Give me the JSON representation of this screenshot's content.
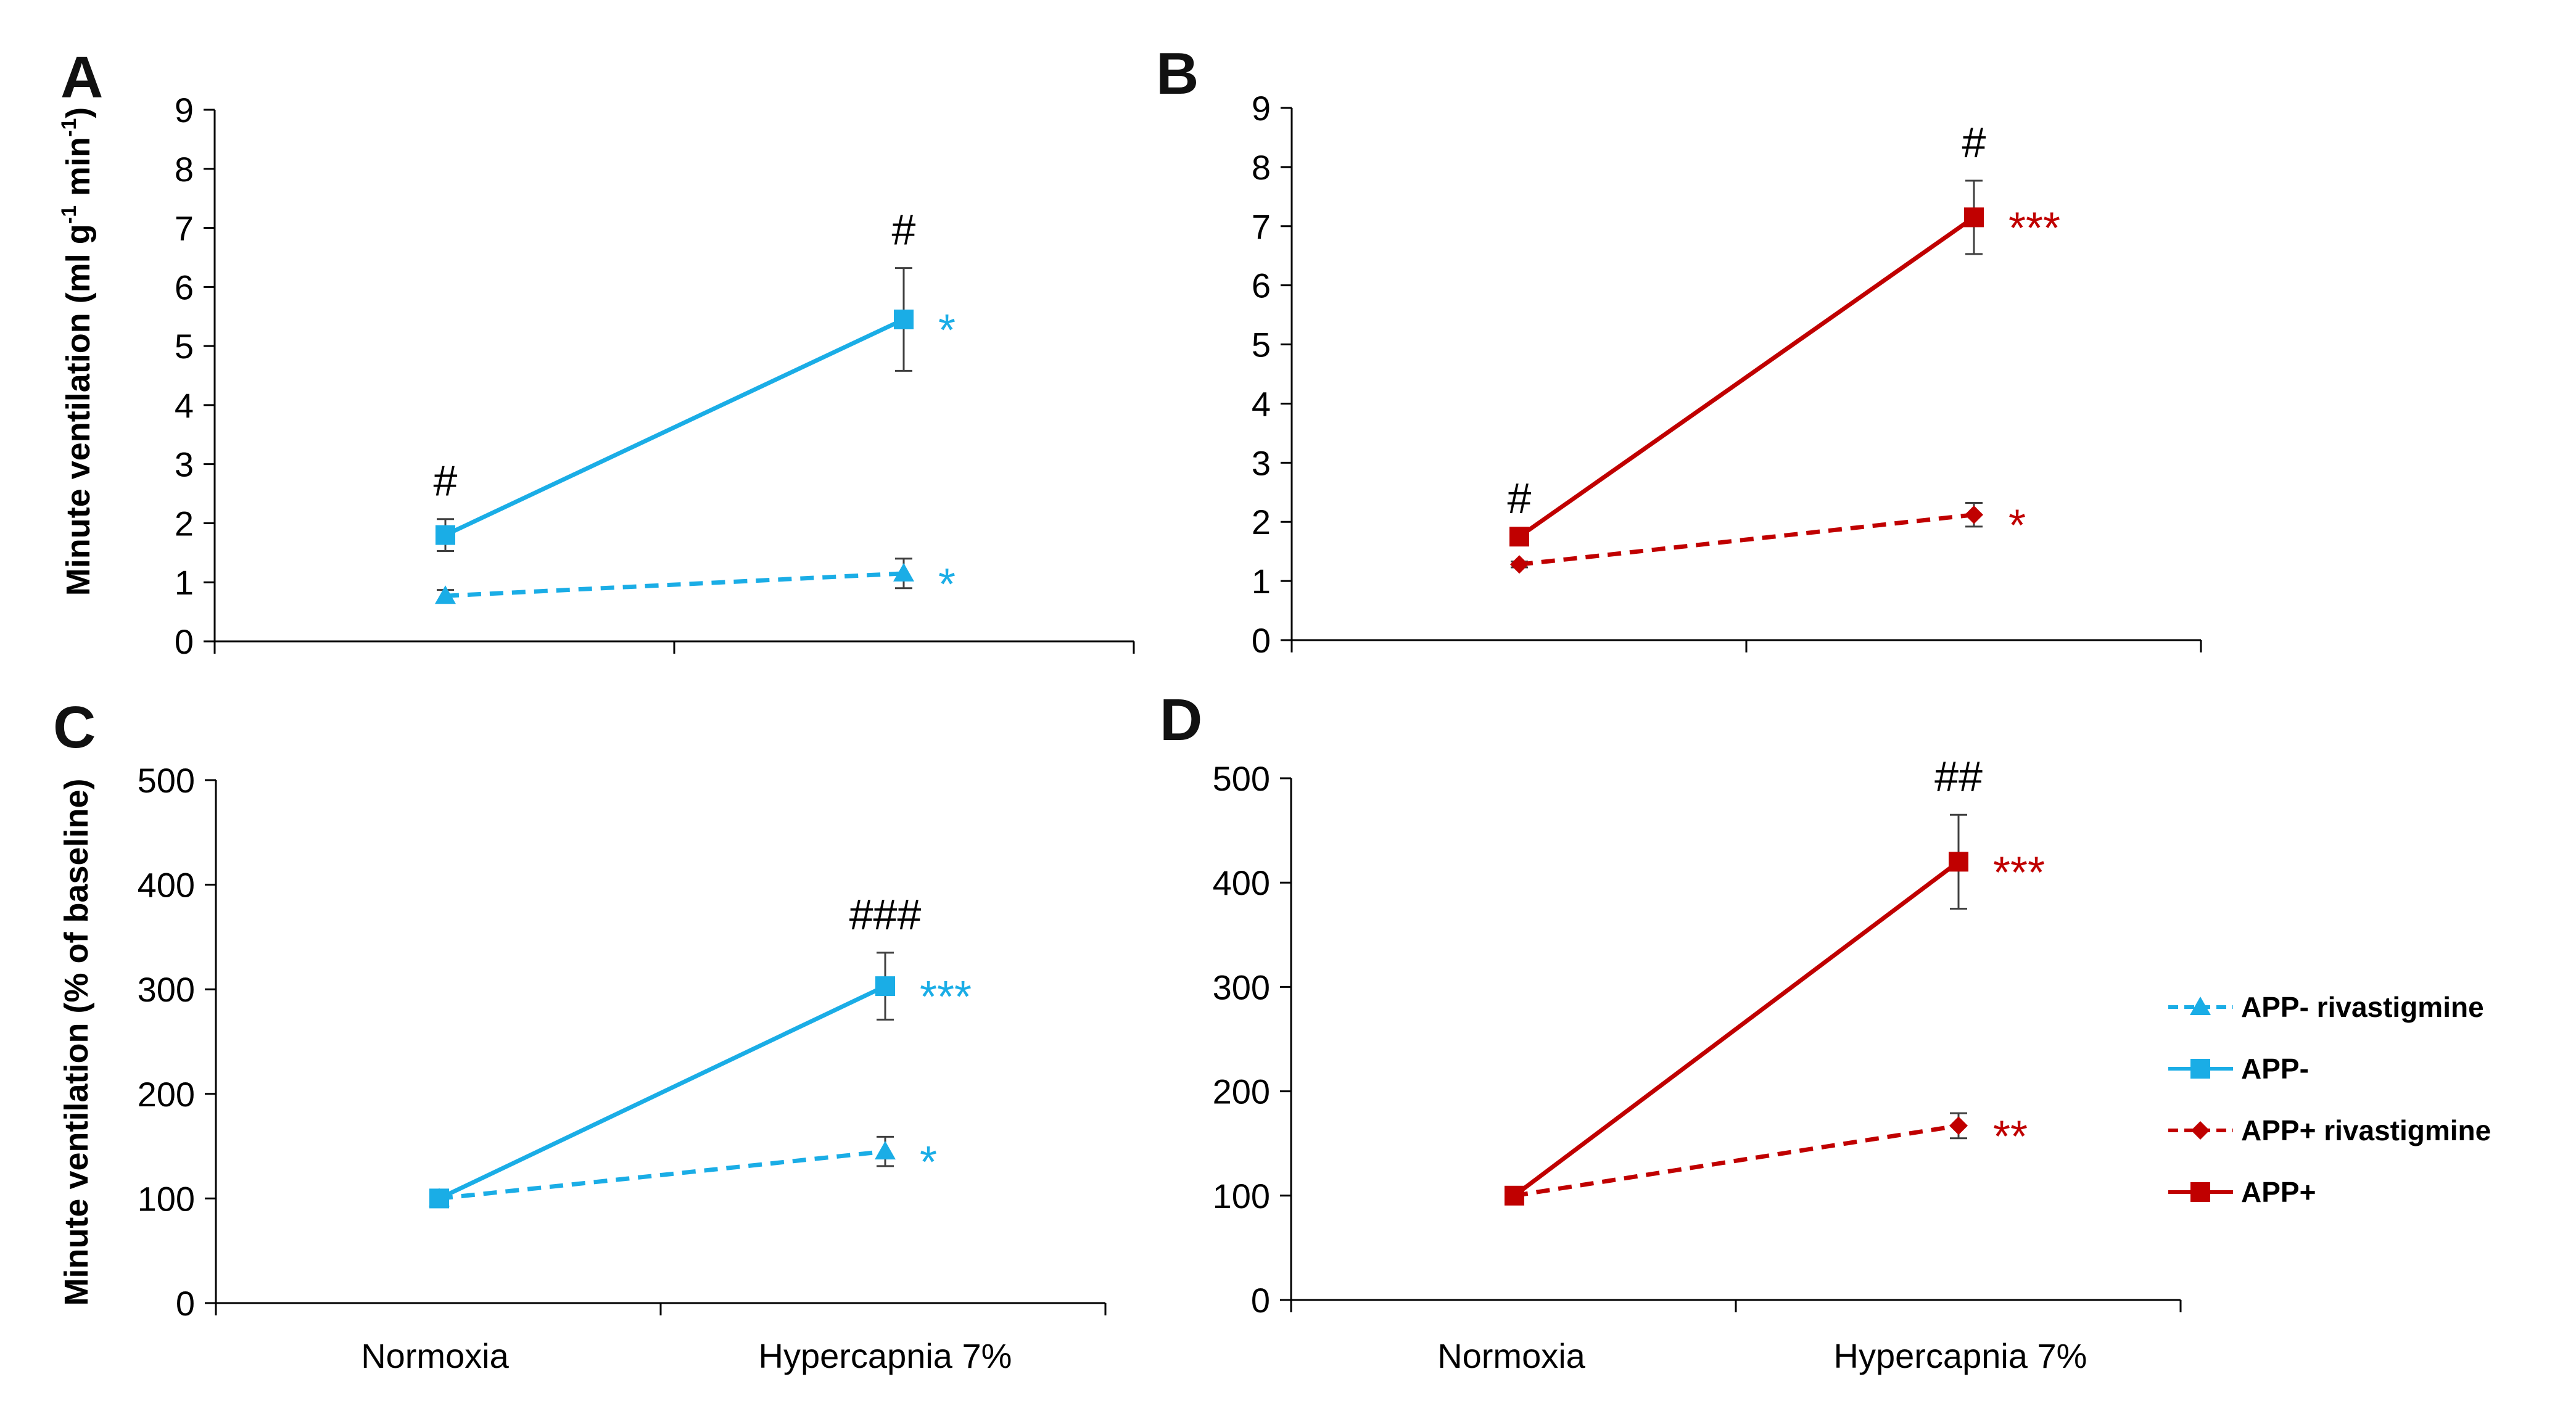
{
  "colors": {
    "blue": "#1AADE6",
    "red": "#C00000",
    "axis": "#000000"
  },
  "figure": {
    "x_categories": [
      "Normoxia",
      "Hypercapnia 7%"
    ],
    "ylabel_top": "Minute ventilation (ml g",
    "ylabel_top_sup1": "-1",
    "ylabel_top_mid": " min",
    "ylabel_top_sup2": "-1",
    "ylabel_top_end": ")",
    "ylabel_bottom": "Minute ventilation (% of baseline)"
  },
  "legend": [
    {
      "label": "APP- rivastigmine",
      "color": "#1AADE6",
      "dash": true,
      "marker": "triangle"
    },
    {
      "label": "APP-",
      "color": "#1AADE6",
      "dash": false,
      "marker": "square"
    },
    {
      "label": "APP+ rivastigmine",
      "color": "#C00000",
      "dash": true,
      "marker": "diamond"
    },
    {
      "label": "APP+",
      "color": "#C00000",
      "dash": false,
      "marker": "square"
    }
  ],
  "chart_data": [
    {
      "panel": "A",
      "type": "line",
      "ylim": [
        0,
        9
      ],
      "yticks": [
        0,
        1,
        2,
        3,
        4,
        5,
        6,
        7,
        8,
        9
      ],
      "categories": [
        "Normoxia",
        "Hypercapnia 7%"
      ],
      "series": [
        {
          "name": "APP-",
          "values": [
            1.8,
            5.45
          ],
          "errors": [
            0.27,
            0.87
          ],
          "color": "#1AADE6",
          "dash": false,
          "marker": "square",
          "annotations": [
            {
              "index": 0,
              "text": "#",
              "kind": "hash"
            },
            {
              "index": 1,
              "text": "#",
              "kind": "hash"
            },
            {
              "index": 1,
              "text": "*",
              "kind": "star"
            }
          ]
        },
        {
          "name": "APP- rivastigmine",
          "values": [
            0.77,
            1.15
          ],
          "errors": [
            0.1,
            0.25
          ],
          "color": "#1AADE6",
          "dash": true,
          "marker": "triangle",
          "annotations": [
            {
              "index": 1,
              "text": "*",
              "kind": "star"
            }
          ]
        }
      ]
    },
    {
      "panel": "B",
      "type": "line",
      "ylim": [
        0,
        9
      ],
      "yticks": [
        0,
        1,
        2,
        3,
        4,
        5,
        6,
        7,
        8,
        9
      ],
      "categories": [
        "Normoxia",
        "Hypercapnia 7%"
      ],
      "series": [
        {
          "name": "APP+",
          "values": [
            1.75,
            7.15
          ],
          "errors": [
            0.0,
            0.62
          ],
          "color": "#C00000",
          "dash": false,
          "marker": "square",
          "annotations": [
            {
              "index": 0,
              "text": "#",
              "kind": "hash"
            },
            {
              "index": 1,
              "text": "#",
              "kind": "hash"
            },
            {
              "index": 1,
              "text": "***",
              "kind": "star"
            }
          ]
        },
        {
          "name": "APP+ rivastigmine",
          "values": [
            1.28,
            2.12
          ],
          "errors": [
            0.05,
            0.2
          ],
          "color": "#C00000",
          "dash": true,
          "marker": "diamond",
          "annotations": [
            {
              "index": 1,
              "text": "*",
              "kind": "star"
            }
          ]
        }
      ]
    },
    {
      "panel": "C",
      "type": "line",
      "ylim": [
        0,
        500
      ],
      "yticks": [
        0,
        100,
        200,
        300,
        400,
        500
      ],
      "categories": [
        "Normoxia",
        "Hypercapnia 7%"
      ],
      "series": [
        {
          "name": "APP-",
          "values": [
            100,
            303
          ],
          "errors": [
            0,
            32
          ],
          "color": "#1AADE6",
          "dash": false,
          "marker": "square",
          "annotations": [
            {
              "index": 1,
              "text": "###",
              "kind": "hash"
            },
            {
              "index": 1,
              "text": "***",
              "kind": "star"
            }
          ]
        },
        {
          "name": "APP- rivastigmine",
          "values": [
            100,
            145
          ],
          "errors": [
            0,
            14
          ],
          "color": "#1AADE6",
          "dash": true,
          "marker": "triangle",
          "annotations": [
            {
              "index": 1,
              "text": "*",
              "kind": "star"
            }
          ]
        }
      ]
    },
    {
      "panel": "D",
      "type": "line",
      "ylim": [
        0,
        500
      ],
      "yticks": [
        0,
        100,
        200,
        300,
        400,
        500
      ],
      "categories": [
        "Normoxia",
        "Hypercapnia 7%"
      ],
      "series": [
        {
          "name": "APP+",
          "values": [
            100,
            420
          ],
          "errors": [
            0,
            45
          ],
          "color": "#C00000",
          "dash": false,
          "marker": "square",
          "annotations": [
            {
              "index": 1,
              "text": "##",
              "kind": "hash"
            },
            {
              "index": 1,
              "text": "***",
              "kind": "star"
            }
          ]
        },
        {
          "name": "APP+ rivastigmine",
          "values": [
            100,
            167
          ],
          "errors": [
            0,
            12
          ],
          "color": "#C00000",
          "dash": true,
          "marker": "diamond",
          "annotations": [
            {
              "index": 1,
              "text": "**",
              "kind": "star"
            }
          ]
        }
      ]
    }
  ]
}
